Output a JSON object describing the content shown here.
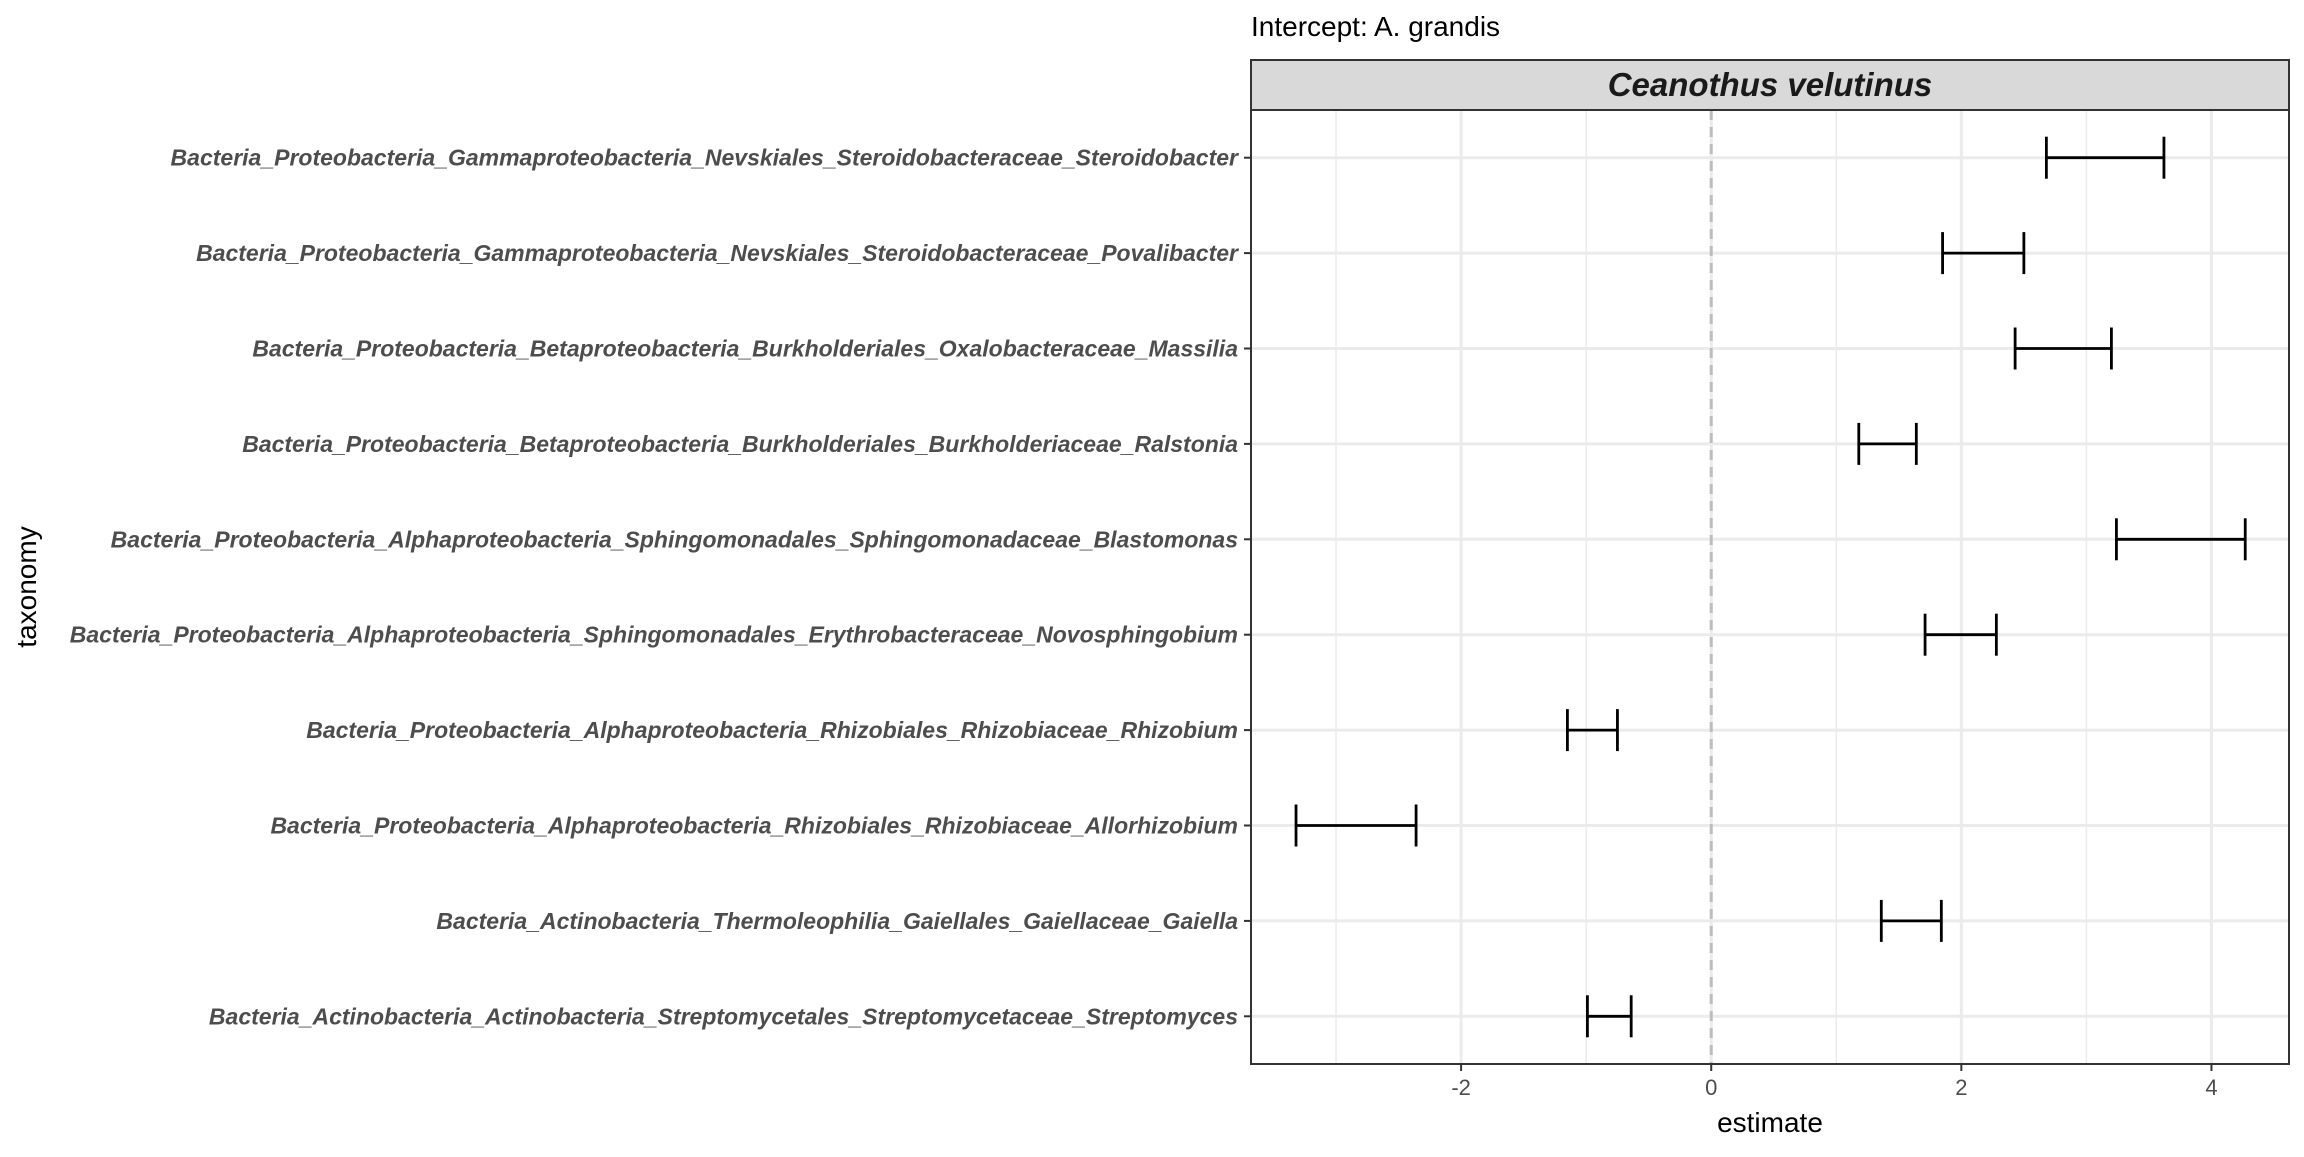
{
  "chart_data": {
    "type": "errorbar",
    "title": "",
    "subtitle": "Intercept: A. grandis",
    "facet_label": "Ceanothus velutinus",
    "xlabel": "estimate",
    "ylabel": "taxonomy",
    "xlim": [
      -3.68,
      4.62
    ],
    "xticks": [
      -2,
      0,
      2,
      4
    ],
    "xtick_labels": [
      "-2",
      "0",
      "2",
      "4"
    ],
    "reference_line": 0,
    "grid": true,
    "legend": "none",
    "colors": {
      "errorbar": "#000000",
      "reference_line": "#bdbdbd",
      "strip_fill": "#d9d9d9",
      "grid": "#ebebeb"
    },
    "categories": [
      "Bacteria_Proteobacteria_Gammaproteobacteria_Nevskiales_Steroidobacteraceae_Steroidobacter",
      "Bacteria_Proteobacteria_Gammaproteobacteria_Nevskiales_Steroidobacteraceae_Povalibacter",
      "Bacteria_Proteobacteria_Betaproteobacteria_Burkholderiales_Oxalobacteraceae_Massilia",
      "Bacteria_Proteobacteria_Betaproteobacteria_Burkholderiales_Burkholderiaceae_Ralstonia",
      "Bacteria_Proteobacteria_Alphaproteobacteria_Sphingomonadales_Sphingomonadaceae_Blastomonas",
      "Bacteria_Proteobacteria_Alphaproteobacteria_Sphingomonadales_Erythrobacteraceae_Novosphingobium",
      "Bacteria_Proteobacteria_Alphaproteobacteria_Rhizobiales_Rhizobiaceae_Rhizobium",
      "Bacteria_Proteobacteria_Alphaproteobacteria_Rhizobiales_Rhizobiaceae_Allorhizobium",
      "Bacteria_Actinobacteria_Thermoleophilia_Gaiellales_Gaiellaceae_Gaiella",
      "Bacteria_Actinobacteria_Actinobacteria_Streptomycetales_Streptomycetaceae_Streptomyces"
    ],
    "lower": [
      2.68,
      1.85,
      2.43,
      1.18,
      3.24,
      1.71,
      -1.15,
      -3.32,
      1.36,
      -0.99
    ],
    "upper": [
      3.62,
      2.5,
      3.2,
      1.64,
      4.27,
      2.28,
      -0.75,
      -2.36,
      1.84,
      -0.64
    ]
  }
}
